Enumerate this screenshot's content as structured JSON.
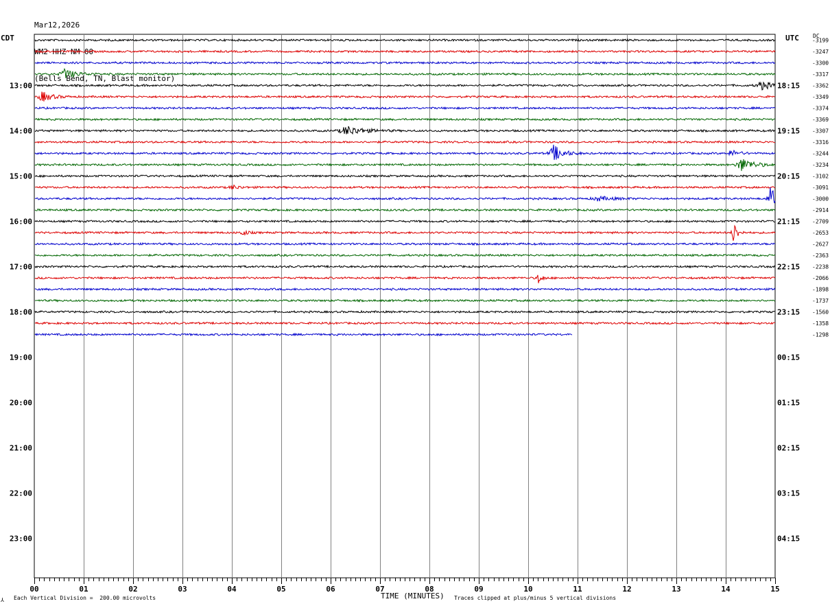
{
  "header": {
    "date": "Mar12,2026",
    "station": "WM2 HHZ NM 00",
    "location": "(Bells Bend, TN, Blast monitor)"
  },
  "left_tz": "CDT",
  "right_tz": "UTC",
  "dc_label": "DC",
  "footer": {
    "scale": "Each Vertical Division =  200.00 microvolts",
    "clip": "Traces clipped at plus/minus 5 vertical divisions",
    "mark": "⅄"
  },
  "colors": {
    "black": "#000000",
    "red": "#dd0000",
    "blue": "#0000cc",
    "green": "#006600",
    "grid": "#808080"
  },
  "chart_data": {
    "type": "line",
    "title": "Mar12,2026 WM2 HHZ NM 00 (Bells Bend, TN, Blast monitor)",
    "xlabel": "TIME (MINUTES)",
    "xlim": [
      0,
      15
    ],
    "x_ticks": [
      "00",
      "01",
      "02",
      "03",
      "04",
      "05",
      "06",
      "07",
      "08",
      "09",
      "10",
      "11",
      "12",
      "13",
      "14",
      "15"
    ],
    "cdt_hour_labels": [
      "13:00",
      "14:00",
      "15:00",
      "16:00",
      "17:00",
      "18:00",
      "19:00",
      "20:00",
      "21:00",
      "22:00",
      "23:00"
    ],
    "utc_hour_labels": [
      "18:15",
      "19:15",
      "20:15",
      "21:15",
      "22:15",
      "23:15",
      "00:15",
      "01:15",
      "02:15",
      "03:15",
      "04:15"
    ],
    "trace_row_count": 48,
    "traces_drawn": 27,
    "last_trace_end_minute": 10.9,
    "color_cycle": [
      "black",
      "red",
      "blue",
      "green"
    ],
    "dc_offsets": [
      "-3199",
      "-3247",
      "-3300",
      "-3317",
      "-3362",
      "-3349",
      "-3374",
      "-3369",
      "-3307",
      "-3316",
      "-3244",
      "-3234",
      "-3102",
      "-3091",
      "-3000",
      "-2914",
      "-2709",
      "-2653",
      "-2627",
      "-2363",
      "-2238",
      "-2066",
      "-1898",
      "-1737",
      "-1560",
      "-1358",
      "-1298"
    ],
    "events": [
      {
        "trace": 3,
        "minute": 0.6,
        "amp": 2.2,
        "dur": 0.5
      },
      {
        "trace": 4,
        "minute": 14.7,
        "amp": 2.0,
        "dur": 0.5
      },
      {
        "trace": 5,
        "minute": 0.15,
        "amp": 2.4,
        "dur": 0.4
      },
      {
        "trace": 8,
        "minute": 6.3,
        "amp": 2.2,
        "dur": 0.7
      },
      {
        "trace": 10,
        "minute": 10.5,
        "amp": 4.0,
        "dur": 0.4
      },
      {
        "trace": 10,
        "minute": 14.1,
        "amp": 1.6,
        "dur": 0.3
      },
      {
        "trace": 11,
        "minute": 14.3,
        "amp": 3.2,
        "dur": 0.5
      },
      {
        "trace": 13,
        "minute": 4.0,
        "amp": 1.0,
        "dur": 0.3
      },
      {
        "trace": 14,
        "minute": 11.4,
        "amp": 1.0,
        "dur": 0.6
      },
      {
        "trace": 14,
        "minute": 14.9,
        "amp": 5.0,
        "dur": 0.3
      },
      {
        "trace": 17,
        "minute": 14.15,
        "amp": 6.0,
        "dur": 0.15
      },
      {
        "trace": 17,
        "minute": 4.2,
        "amp": 1.5,
        "dur": 0.2
      },
      {
        "trace": 21,
        "minute": 10.2,
        "amp": 2.8,
        "dur": 0.15
      }
    ]
  }
}
